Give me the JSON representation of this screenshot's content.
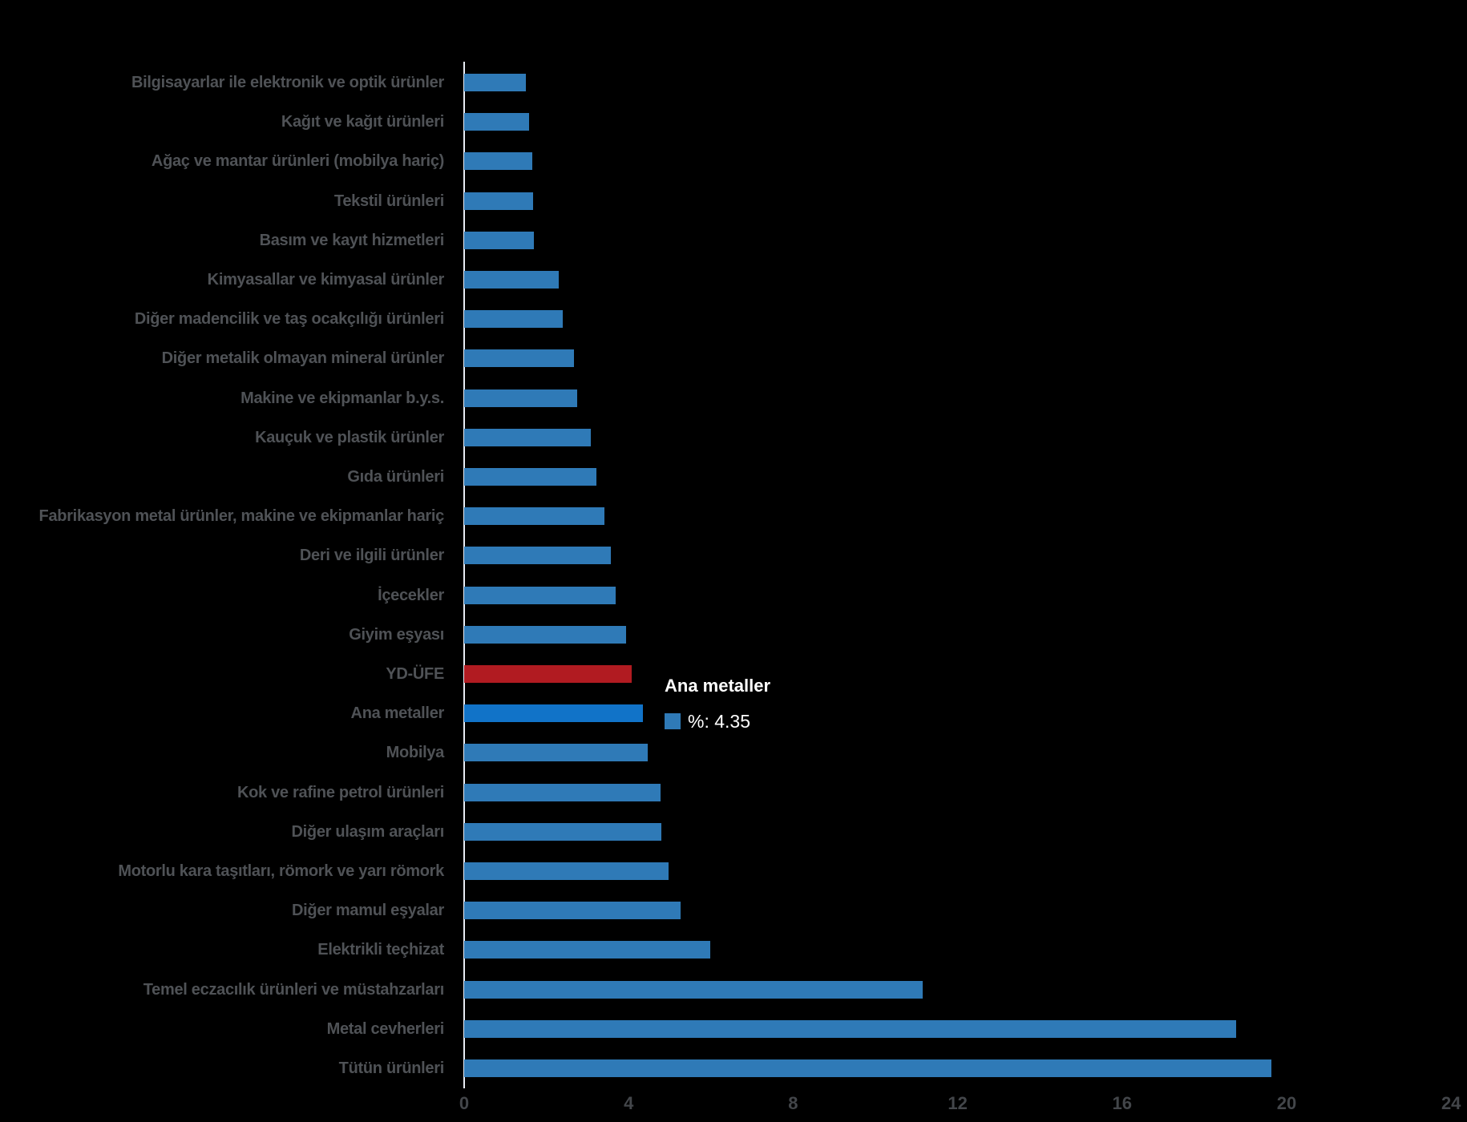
{
  "chart_data": {
    "type": "bar",
    "orientation": "horizontal",
    "title": "",
    "xlabel": "",
    "ylabel": "",
    "xlim": [
      0,
      24
    ],
    "xticks": [
      0,
      4,
      8,
      12,
      16,
      20,
      24
    ],
    "grid": false,
    "legend_position": "none",
    "categories": [
      "Bilgisayarlar ile elektronik ve optik ürünler",
      "Kağıt ve kağıt ürünleri",
      "Ağaç ve mantar ürünleri (mobilya hariç)",
      "Tekstil ürünleri",
      "Basım ve kayıt hizmetleri",
      "Kimyasallar ve kimyasal ürünler",
      "Diğer madencilik ve taş ocakçılığı ürünleri",
      "Diğer metalik olmayan mineral ürünler",
      "Makine ve ekipmanlar b.y.s.",
      "Kauçuk ve plastik ürünler",
      "Gıda ürünleri",
      "Fabrikasyon metal ürünler, makine ve ekipmanlar hariç",
      "Deri ve ilgili ürünler",
      "İçecekler",
      "Giyim eşyası",
      "YD-ÜFE",
      "Ana metaller",
      "Mobilya",
      "Kok ve rafine petrol ürünleri",
      "Diğer ulaşım araçları",
      "Motorlu kara taşıtları, römork ve yarı römork",
      "Diğer mamul eşyalar",
      "Elektrikli teçhizat",
      "Temel eczacılık ürünleri ve müstahzarları",
      "Metal cevherleri",
      "Tütün ürünleri"
    ],
    "values": [
      1.51,
      1.58,
      1.66,
      1.68,
      1.7,
      2.3,
      2.39,
      2.67,
      2.75,
      3.08,
      3.22,
      3.41,
      3.56,
      3.68,
      3.94,
      4.07,
      4.35,
      4.46,
      4.77,
      4.79,
      4.97,
      5.26,
      5.99,
      11.15,
      18.78,
      19.63
    ],
    "index_row": "YD-ÜFE",
    "highlighted_row": "Ana metaller"
  },
  "tooltip": {
    "title": "Ana metaller",
    "value_label": "%: 4.35"
  },
  "colors": {
    "background": "#000000",
    "bar": "#2F7AB7",
    "highlight_bar": "#1173C8",
    "index_bar": "#B11B21",
    "category_label": "#4F5256",
    "tick_label": "#43464A",
    "axis_line": "#E8ECF4",
    "tooltip_text": "#FFFFFF"
  }
}
